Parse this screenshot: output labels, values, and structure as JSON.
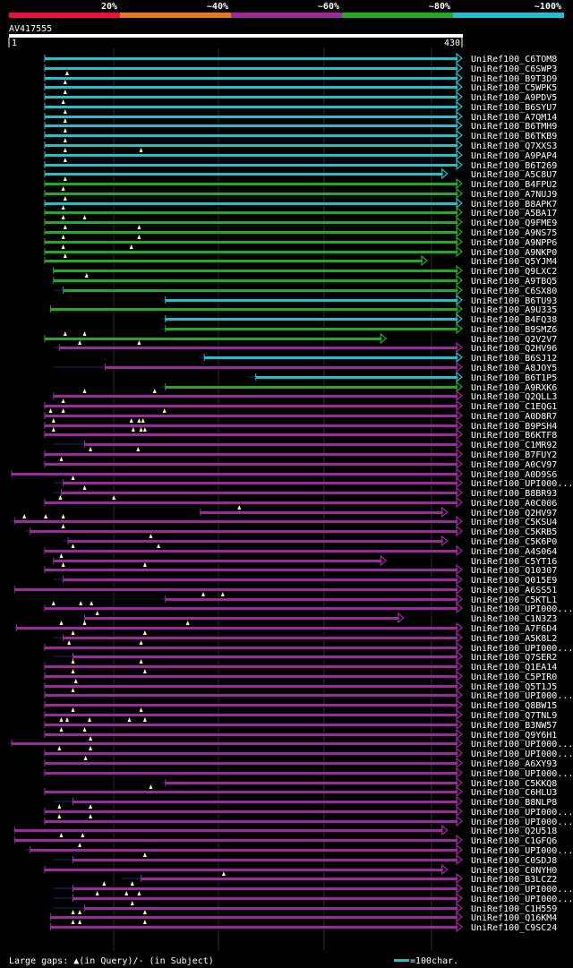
{
  "legend_scale": {
    "labels": [
      "20%",
      "~40%",
      "~60%",
      "~80%",
      "~100%"
    ],
    "colors": [
      "#e8123a",
      "#e87a1e",
      "#9c2a9c",
      "#22aa22",
      "#22bfcc"
    ]
  },
  "query": {
    "name": "AV417555",
    "start": "1",
    "end": "430",
    "length": 430
  },
  "footer": {
    "gaps_text": "Large gaps: ▲(in Query)/- (in Subject)",
    "scale_text": "=100char.",
    "scale_color": "#22bfcc"
  },
  "identity_colors": {
    "cyan": "#22bfcc",
    "green": "#22aa22",
    "purple": "#9c2a9c"
  },
  "hits": [
    {
      "label": "UniRef100_C6TOM8",
      "qs": 1,
      "qe": 430,
      "ss": 40,
      "color": "cyan",
      "tri": []
    },
    {
      "label": "UniRef100_C6SWP3",
      "qs": 1,
      "qe": 430,
      "ss": 40,
      "color": "cyan",
      "tri": []
    },
    {
      "label": "UniRef100_B9T3D9",
      "qs": 1,
      "qe": 430,
      "ss": 40,
      "color": "cyan",
      "tri": [
        24
      ]
    },
    {
      "label": "UniRef100_C5WPK5",
      "qs": 1,
      "qe": 430,
      "ss": 40,
      "color": "cyan",
      "tri": [
        22
      ]
    },
    {
      "label": "UniRef100_A9PDV5",
      "qs": 1,
      "qe": 430,
      "ss": 40,
      "color": "cyan",
      "tri": [
        22
      ]
    },
    {
      "label": "UniRef100_B6SYU7",
      "qs": 1,
      "qe": 430,
      "ss": 40,
      "color": "cyan",
      "tri": [
        20
      ]
    },
    {
      "label": "UniRef100_A7QM14",
      "qs": 1,
      "qe": 430,
      "ss": 40,
      "color": "cyan",
      "tri": [
        22
      ]
    },
    {
      "label": "UniRef100_B6TMH9",
      "qs": 1,
      "qe": 430,
      "ss": 40,
      "color": "cyan",
      "tri": [
        22
      ]
    },
    {
      "label": "UniRef100_B6TKB9",
      "qs": 1,
      "qe": 430,
      "ss": 40,
      "color": "cyan",
      "tri": [
        22
      ]
    },
    {
      "label": "UniRef100_Q7XXS3",
      "qs": 1,
      "qe": 430,
      "ss": 40,
      "color": "cyan",
      "tri": [
        22
      ]
    },
    {
      "label": "UniRef100_A9PAP4",
      "qs": 1,
      "qe": 430,
      "ss": 40,
      "color": "cyan",
      "tri": [
        22,
        100
      ]
    },
    {
      "label": "UniRef100_B6T269",
      "qs": 1,
      "qe": 430,
      "ss": 40,
      "color": "cyan",
      "tri": [
        22
      ]
    },
    {
      "label": "UniRef100_A5C8U7",
      "qs": 1,
      "qe": 415,
      "ss": 40,
      "color": "cyan",
      "tri": []
    },
    {
      "label": "UniRef100_B4FPU2",
      "qs": 1,
      "qe": 430,
      "ss": 40,
      "color": "green",
      "tri": [
        22
      ]
    },
    {
      "label": "UniRef100_A7NUJ9",
      "qs": 1,
      "qe": 430,
      "ss": 40,
      "color": "green",
      "tri": [
        20
      ]
    },
    {
      "label": "UniRef100_B8APK7",
      "qs": 1,
      "qe": 430,
      "ss": 40,
      "color": "cyan",
      "tri": [
        22
      ]
    },
    {
      "label": "UniRef100_A5BA17",
      "qs": 1,
      "qe": 430,
      "ss": 40,
      "color": "green",
      "tri": [
        20
      ]
    },
    {
      "label": "UniRef100_Q9FME9",
      "qs": 1,
      "qe": 430,
      "ss": 40,
      "color": "green",
      "tri": [
        20,
        42
      ]
    },
    {
      "label": "UniRef100_A9NS75",
      "qs": 1,
      "qe": 430,
      "ss": 40,
      "color": "green",
      "tri": [
        22,
        98
      ]
    },
    {
      "label": "UniRef100_A9NPP6",
      "qs": 1,
      "qe": 430,
      "ss": 40,
      "color": "green",
      "tri": [
        20,
        98
      ]
    },
    {
      "label": "UniRef100_A9NKP0",
      "qs": 1,
      "qe": 430,
      "ss": 40,
      "color": "green",
      "tri": [
        20,
        90
      ]
    },
    {
      "label": "UniRef100_Q5YJM4",
      "qs": 1,
      "qe": 394,
      "ss": 40,
      "color": "green",
      "tri": [
        22
      ]
    },
    {
      "label": "UniRef100_Q9LXC2",
      "qs": 10,
      "qe": 430,
      "ss": 10,
      "color": "green",
      "tri": []
    },
    {
      "label": "UniRef100_A9TBQ5",
      "qs": 10,
      "qe": 430,
      "ss": 10,
      "color": "green",
      "tri": [
        44
      ]
    },
    {
      "label": "UniRef100_C6SX80",
      "qs": 20,
      "qe": 430,
      "ss": 10,
      "color": "green",
      "tri": []
    },
    {
      "label": "UniRef100_B6TU93",
      "qs": 125,
      "qe": 430,
      "ss": 120,
      "color": "cyan",
      "tri": []
    },
    {
      "label": "UniRef100_A9U335",
      "qs": 7,
      "qe": 430,
      "ss": 10,
      "color": "green",
      "tri": []
    },
    {
      "label": "UniRef100_B4FQ38",
      "qs": 125,
      "qe": 430,
      "ss": 120,
      "color": "cyan",
      "tri": []
    },
    {
      "label": "UniRef100_B9SMZ6",
      "qs": 125,
      "qe": 430,
      "ss": 120,
      "color": "green",
      "tri": []
    },
    {
      "label": "UniRef100_Q2V2V7",
      "qs": 1,
      "qe": 352,
      "ss": 40,
      "color": "green",
      "tri": [
        22,
        42
      ]
    },
    {
      "label": "UniRef100_Q2HV96",
      "qs": 16,
      "qe": 430,
      "ss": 10,
      "color": "purple",
      "tri": [
        37,
        98
      ]
    },
    {
      "label": "UniRef100_B6SJ12",
      "qs": 165,
      "qe": 430,
      "ss": 160,
      "color": "cyan",
      "tri": []
    },
    {
      "label": "UniRef100_A8JOY5",
      "qs": 63,
      "qe": 430,
      "ss": 10,
      "color": "purple",
      "tri": []
    },
    {
      "label": "UniRef100_B6T1P5",
      "qs": 218,
      "qe": 430,
      "ss": 210,
      "color": "cyan",
      "tri": []
    },
    {
      "label": "UniRef100_A9RXK6",
      "qs": 125,
      "qe": 430,
      "ss": 120,
      "color": "green",
      "tri": []
    },
    {
      "label": "UniRef100_Q2QLL3",
      "qs": 10,
      "qe": 430,
      "ss": 10,
      "color": "purple",
      "tri": [
        42,
        114
      ]
    },
    {
      "label": "UniRef100_C1EQG1",
      "qs": 1,
      "qe": 430,
      "ss": 10,
      "color": "purple",
      "tri": [
        20
      ]
    },
    {
      "label": "UniRef100_A0D8R7",
      "qs": 1,
      "qe": 430,
      "ss": 10,
      "color": "purple",
      "tri": [
        7,
        20,
        124
      ]
    },
    {
      "label": "UniRef100_B9PSH4",
      "qs": 1,
      "qe": 430,
      "ss": 10,
      "color": "purple",
      "tri": [
        10,
        90,
        98,
        102
      ]
    },
    {
      "label": "UniRef100_B6KTF8",
      "qs": 1,
      "qe": 430,
      "ss": 10,
      "color": "purple",
      "tri": [
        10,
        92,
        100,
        104
      ]
    },
    {
      "label": "UniRef100_C1MR92",
      "qs": 42,
      "qe": 430,
      "ss": 10,
      "color": "purple",
      "tri": []
    },
    {
      "label": "UniRef100_B7FUY2",
      "qs": 1,
      "qe": 430,
      "ss": 10,
      "color": "purple",
      "tri": [
        48,
        97
      ]
    },
    {
      "label": "UniRef100_A0CV97",
      "qs": 1,
      "qe": 430,
      "ss": 10,
      "color": "purple",
      "tri": [
        18
      ]
    },
    {
      "label": "UniRef100_A0D9S6",
      "qs": -33,
      "qe": 430,
      "ss": -35,
      "color": "purple",
      "tri": []
    },
    {
      "label": "UniRef100_UPI000...",
      "qs": 20,
      "qe": 430,
      "ss": 10,
      "color": "purple",
      "tri": [
        30
      ]
    },
    {
      "label": "UniRef100_B8BR93",
      "qs": 18,
      "qe": 430,
      "ss": 10,
      "color": "purple",
      "tri": [
        42
      ]
    },
    {
      "label": "UniRef100_A0C006",
      "qs": 1,
      "qe": 430,
      "ss": 10,
      "color": "purple",
      "tri": [
        17,
        72
      ]
    },
    {
      "label": "UniRef100_Q2HV97",
      "qs": 161,
      "qe": 415,
      "ss": 160,
      "color": "purple",
      "tri": [
        201
      ]
    },
    {
      "label": "UniRef100_C5KSU4",
      "qs": -30,
      "qe": 430,
      "ss": -35,
      "color": "purple",
      "tri": [
        -20,
        2,
        20
      ]
    },
    {
      "label": "UniRef100_C5KRB5",
      "qs": -14,
      "qe": 430,
      "ss": -20,
      "color": "purple",
      "tri": [
        20
      ]
    },
    {
      "label": "UniRef100_C5K6P0",
      "qs": 25,
      "qe": 415,
      "ss": 20,
      "color": "purple",
      "tri": [
        110
      ]
    },
    {
      "label": "UniRef100_A4S064",
      "qs": 1,
      "qe": 430,
      "ss": 10,
      "color": "purple",
      "tri": [
        30,
        118
      ]
    },
    {
      "label": "UniRef100_C5YT16",
      "qs": 10,
      "qe": 352,
      "ss": 10,
      "color": "purple",
      "tri": [
        18
      ]
    },
    {
      "label": "UniRef100_Q10307",
      "qs": 1,
      "qe": 430,
      "ss": 10,
      "color": "purple",
      "tri": [
        20,
        104
      ]
    },
    {
      "label": "UniRef100_Q015E9",
      "qs": 20,
      "qe": 430,
      "ss": 10,
      "color": "purple",
      "tri": []
    },
    {
      "label": "UniRef100_A6SS51",
      "qs": -30,
      "qe": 430,
      "ss": -30,
      "color": "purple",
      "tri": []
    },
    {
      "label": "UniRef100_C5KTL1",
      "qs": 125,
      "qe": 430,
      "ss": 120,
      "color": "purple",
      "tri": [
        164,
        184
      ]
    },
    {
      "label": "UniRef100_UPI000...",
      "qs": 1,
      "qe": 430,
      "ss": 10,
      "color": "purple",
      "tri": [
        10,
        38,
        49
      ]
    },
    {
      "label": "UniRef100_C1N3Z3",
      "qs": 42,
      "qe": 370,
      "ss": 40,
      "color": "purple",
      "tri": [
        55
      ]
    },
    {
      "label": "UniRef100_A7F6D4",
      "qs": -28,
      "qe": 430,
      "ss": -30,
      "color": "purple",
      "tri": [
        18,
        42,
        148
      ]
    },
    {
      "label": "UniRef100_A5K8L2",
      "qs": 20,
      "qe": 430,
      "ss": 10,
      "color": "purple",
      "tri": [
        30,
        104
      ]
    },
    {
      "label": "UniRef100_UPI000...",
      "qs": 1,
      "qe": 430,
      "ss": 10,
      "color": "purple",
      "tri": [
        26,
        100
      ]
    },
    {
      "label": "UniRef100_Q7SER2",
      "qs": 30,
      "qe": 430,
      "ss": 10,
      "color": "purple",
      "tri": []
    },
    {
      "label": "UniRef100_Q1EA14",
      "qs": 1,
      "qe": 430,
      "ss": 10,
      "color": "purple",
      "tri": [
        30,
        100
      ]
    },
    {
      "label": "UniRef100_C5PIR0",
      "qs": 1,
      "qe": 430,
      "ss": 10,
      "color": "purple",
      "tri": [
        30,
        104
      ]
    },
    {
      "label": "UniRef100_Q5T1J5",
      "qs": 1,
      "qe": 430,
      "ss": 10,
      "color": "purple",
      "tri": [
        33
      ]
    },
    {
      "label": "UniRef100_UPI000...",
      "qs": 1,
      "qe": 430,
      "ss": 10,
      "color": "purple",
      "tri": [
        30
      ]
    },
    {
      "label": "UniRef100_Q8BW15",
      "qs": 1,
      "qe": 430,
      "ss": 10,
      "color": "purple",
      "tri": []
    },
    {
      "label": "UniRef100_Q7TNL9",
      "qs": 1,
      "qe": 430,
      "ss": 10,
      "color": "purple",
      "tri": [
        30,
        100
      ]
    },
    {
      "label": "UniRef100_B3NW57",
      "qs": 1,
      "qe": 430,
      "ss": 10,
      "color": "purple",
      "tri": [
        18,
        24,
        47,
        88,
        104
      ]
    },
    {
      "label": "UniRef100_Q9Y6H1",
      "qs": 1,
      "qe": 430,
      "ss": 10,
      "color": "purple",
      "tri": [
        18,
        42
      ]
    },
    {
      "label": "UniRef100_UPI000...",
      "qs": -33,
      "qe": 430,
      "ss": -35,
      "color": "purple",
      "tri": [
        48
      ]
    },
    {
      "label": "UniRef100_UPI000...",
      "qs": 1,
      "qe": 430,
      "ss": 10,
      "color": "purple",
      "tri": [
        16,
        48
      ]
    },
    {
      "label": "UniRef100_A6XY93",
      "qs": 1,
      "qe": 430,
      "ss": 10,
      "color": "purple",
      "tri": [
        43
      ]
    },
    {
      "label": "UniRef100_UPI000...",
      "qs": 1,
      "qe": 430,
      "ss": 10,
      "color": "purple",
      "tri": []
    },
    {
      "label": "UniRef100_C5KKQ8",
      "qs": 125,
      "qe": 430,
      "ss": 120,
      "color": "purple",
      "tri": []
    },
    {
      "label": "UniRef100_C6HLU3",
      "qs": 1,
      "qe": 430,
      "ss": 10,
      "color": "purple",
      "tri": [
        110
      ]
    },
    {
      "label": "UniRef100_B8NLP8",
      "qs": 30,
      "qe": 430,
      "ss": 10,
      "color": "purple",
      "tri": []
    },
    {
      "label": "UniRef100_UPI000...",
      "qs": 1,
      "qe": 430,
      "ss": 10,
      "color": "purple",
      "tri": [
        16,
        48
      ]
    },
    {
      "label": "UniRef100_UPI000...",
      "qs": 1,
      "qe": 430,
      "ss": 10,
      "color": "purple",
      "tri": [
        16,
        48
      ]
    },
    {
      "label": "UniRef100_Q2U518",
      "qs": -30,
      "qe": 415,
      "ss": -30,
      "color": "purple",
      "tri": []
    },
    {
      "label": "UniRef100_C1GFQ6",
      "qs": -30,
      "qe": 430,
      "ss": -30,
      "color": "purple",
      "tri": [
        18,
        40
      ]
    },
    {
      "label": "UniRef100_UPI000...",
      "qs": -14,
      "qe": 430,
      "ss": -20,
      "color": "purple",
      "tri": [
        37
      ]
    },
    {
      "label": "UniRef100_C0SDJ8",
      "qs": 30,
      "qe": 430,
      "ss": 10,
      "color": "purple",
      "tri": [
        104
      ]
    },
    {
      "label": "UniRef100_C0NYH0",
      "qs": 1,
      "qe": 415,
      "ss": 10,
      "color": "purple",
      "tri": []
    },
    {
      "label": "UniRef100_B3LCZ2",
      "qs": 100,
      "qe": 430,
      "ss": 80,
      "color": "purple",
      "tri": [
        185
      ]
    },
    {
      "label": "UniRef100_UPI000...",
      "qs": 30,
      "qe": 430,
      "ss": 10,
      "color": "purple",
      "tri": [
        62,
        91
      ]
    },
    {
      "label": "UniRef100_UPI000...",
      "qs": 30,
      "qe": 430,
      "ss": 10,
      "color": "purple",
      "tri": [
        55,
        85,
        98
      ]
    },
    {
      "label": "UniRef100_C1H559",
      "qs": 42,
      "qe": 430,
      "ss": 10,
      "color": "purple",
      "tri": [
        91
      ]
    },
    {
      "label": "UniRef100_Q16KM4",
      "qs": 7,
      "qe": 430,
      "ss": 10,
      "color": "purple",
      "tri": [
        30,
        37,
        104
      ]
    },
    {
      "label": "UniRef100_C9SC24",
      "qs": 7,
      "qe": 430,
      "ss": 10,
      "color": "purple",
      "tri": [
        30,
        37,
        104
      ]
    }
  ]
}
